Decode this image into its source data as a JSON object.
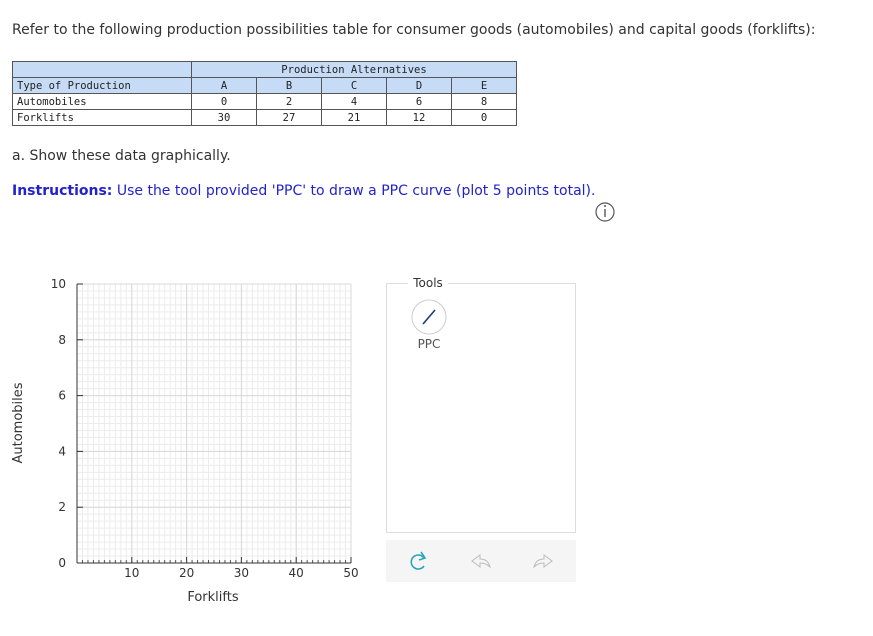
{
  "intro": "Refer to the following production possibilities table for consumer goods (automobiles) and capital goods (forklifts):",
  "table": {
    "group_header": "Production Alternatives",
    "header": [
      "Type of Production",
      "A",
      "B",
      "C",
      "D",
      "E"
    ],
    "rows": [
      [
        "Automobiles",
        0,
        2,
        4,
        6,
        8
      ],
      [
        "Forklifts",
        30,
        27,
        21,
        12,
        0
      ]
    ]
  },
  "question": "a. Show these data graphically.",
  "instructions": {
    "label": "Instructions:",
    "text": "Use the tool provided 'PPC' to draw a PPC curve (plot 5 points total)."
  },
  "graph": {
    "x_label": "Forklifts",
    "y_label": "Automobiles",
    "xlim": [
      0,
      50
    ],
    "xticks": [
      10,
      20,
      30,
      40,
      50
    ],
    "ylim": [
      0,
      10
    ],
    "yticks": [
      0,
      2,
      4,
      6,
      8,
      10
    ]
  },
  "tools": {
    "title": "Tools",
    "items": [
      "PPC"
    ]
  }
}
